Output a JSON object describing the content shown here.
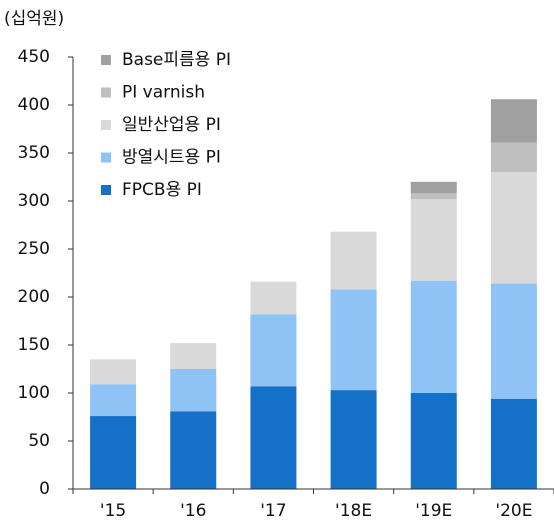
{
  "chart_data": {
    "type": "stacked_bar",
    "y_axis_label": "(십억원)",
    "categories": [
      "'15",
      "'16",
      "'17",
      "'18E",
      "'19E",
      "'20E"
    ],
    "series": [
      {
        "name": "FPCB용 PI",
        "color": "#1570c8",
        "values": [
          76,
          81,
          107,
          103,
          100,
          94
        ]
      },
      {
        "name": "방열시트용 PI",
        "color": "#8fc3f5",
        "values": [
          33,
          44,
          75,
          105,
          117,
          120
        ]
      },
      {
        "name": "일반산업용 PI",
        "color": "#d9d9d9",
        "values": [
          26,
          27,
          34,
          60,
          85,
          116
        ]
      },
      {
        "name": "PI varnish",
        "color": "#bfbfbf",
        "values": [
          null,
          null,
          null,
          null,
          6,
          31
        ]
      },
      {
        "name": "Base피름용 PI",
        "color": "#a0a0a0",
        "values": [
          null,
          null,
          null,
          null,
          12,
          45
        ]
      }
    ],
    "ylim": [
      0,
      450
    ],
    "yticks": [
      0,
      50,
      100,
      150,
      200,
      250,
      300,
      350,
      400,
      450
    ],
    "legend": "upper-left"
  }
}
